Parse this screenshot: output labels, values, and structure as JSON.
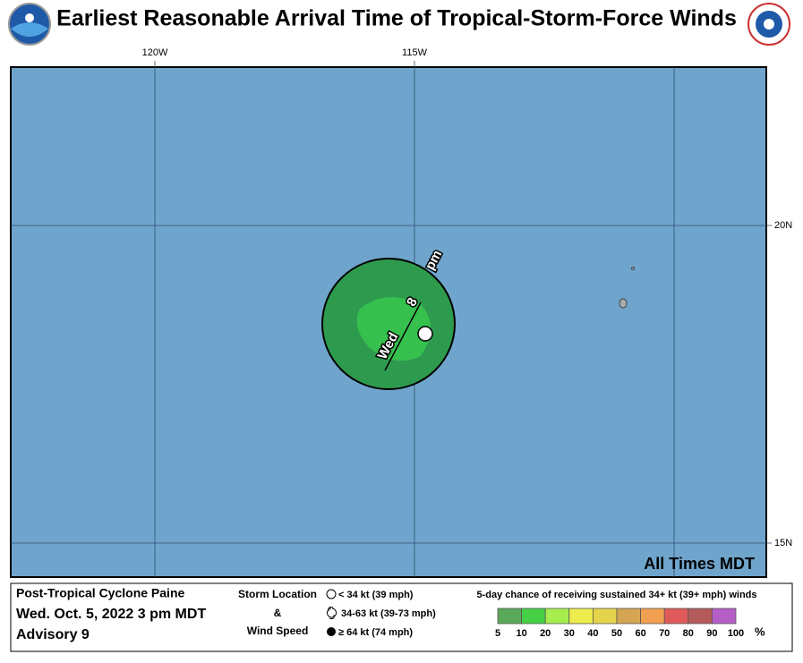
{
  "header": {
    "title": "Earliest Reasonable Arrival Time of Tropical-Storm-Force Winds"
  },
  "map": {
    "lon_labels": [
      "120W",
      "115W"
    ],
    "lat_labels": [
      "20N",
      "15N"
    ],
    "contour_labels": [
      "Wed",
      "8",
      "pm"
    ],
    "time_note": "All Times MDT"
  },
  "footer": {
    "storm_name": "Post-Tropical Cyclone Paine",
    "date": "Wed. Oct. 5, 2022  3 pm MDT",
    "advisory": "Advisory 9",
    "storm_location": "Storm Location",
    "amp": "&",
    "wind_speed": "Wind Speed",
    "legend": [
      "< 34 kt (39 mph)",
      "34-63 kt (39-73 mph)",
      "≥ 64 kt (74 mph)"
    ],
    "scale_title": "5-day chance of receiving sustained 34+ kt (39+ mph) winds",
    "scale_labels": [
      "5",
      "10",
      "20",
      "30",
      "40",
      "50",
      "60",
      "70",
      "80",
      "90",
      "100"
    ],
    "percent": "%"
  }
}
